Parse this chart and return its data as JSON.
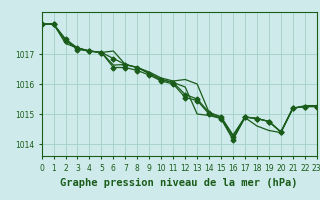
{
  "title": "Graphe pression niveau de la mer (hPa)",
  "background_color": "#ceeaea",
  "grid_color": "#a8d4cc",
  "line_color": "#1a5c1a",
  "series": [
    [
      1018.0,
      1018.0,
      1017.5,
      1017.2,
      1017.1,
      1017.05,
      1016.55,
      1016.55,
      1016.45,
      1016.3,
      1016.1,
      1016.0,
      1015.55,
      1015.45,
      1015.0,
      1014.85,
      1014.15,
      1014.9,
      1014.85,
      1014.75,
      1014.4,
      1015.2,
      1015.25,
      1015.25
    ],
    [
      1018.0,
      1018.0,
      1017.45,
      1017.15,
      1017.1,
      1017.05,
      1016.85,
      1016.65,
      1016.55,
      1016.35,
      1016.15,
      1016.05,
      1015.65,
      1015.5,
      1015.05,
      1014.9,
      1014.25,
      1014.9,
      1014.85,
      1014.75,
      1014.4,
      1015.2,
      1015.25,
      1015.25
    ],
    [
      1018.0,
      1018.0,
      1017.45,
      1017.2,
      1017.1,
      1017.05,
      1017.1,
      1016.65,
      1016.55,
      1016.4,
      1016.2,
      1016.1,
      1016.15,
      1016.0,
      1015.05,
      1014.9,
      1014.3,
      1014.9,
      1014.85,
      1014.75,
      1014.4,
      1015.2,
      1015.25,
      1015.25
    ],
    [
      1018.0,
      1018.0,
      1017.35,
      1017.2,
      1017.1,
      1017.05,
      1016.63,
      1016.65,
      1016.55,
      1016.35,
      1016.15,
      1016.05,
      1015.9,
      1015.0,
      1014.95,
      1014.85,
      1014.15,
      1014.88,
      1014.6,
      1014.45,
      1014.38,
      1015.18,
      1015.28,
      1015.28
    ]
  ],
  "xlim": [
    0,
    23
  ],
  "ylim": [
    1013.6,
    1018.4
  ],
  "yticks": [
    1014,
    1015,
    1016,
    1017
  ],
  "xticks": [
    0,
    1,
    2,
    3,
    4,
    5,
    6,
    7,
    8,
    9,
    10,
    11,
    12,
    13,
    14,
    15,
    16,
    17,
    18,
    19,
    20,
    21,
    22,
    23
  ],
  "marker_size": 2.5,
  "line_width": 0.9,
  "title_fontsize": 7.5,
  "tick_fontsize": 5.5
}
